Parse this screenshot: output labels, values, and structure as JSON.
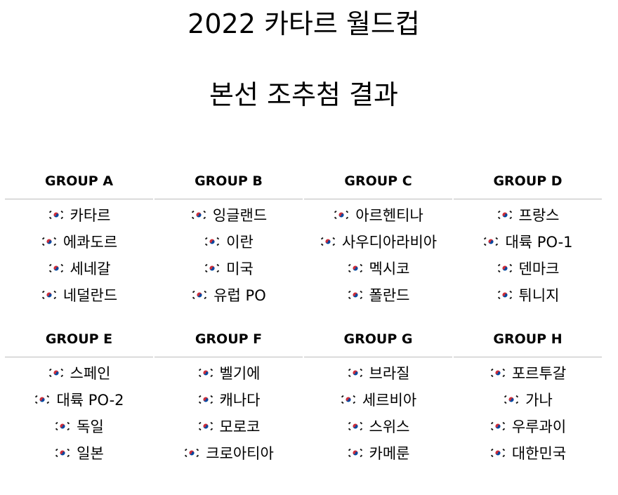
{
  "title_line1": "2022 카타르 월드컵",
  "title_line2": "본선 조추첨 결과",
  "flag_icon": "south-korea-flag-icon",
  "groups": [
    {
      "name": "GROUP A",
      "teams": [
        "카타르",
        "에콰도르",
        "세네갈",
        "네덜란드"
      ]
    },
    {
      "name": "GROUP B",
      "teams": [
        "잉글랜드",
        "이란",
        "미국",
        "유럽 PO"
      ]
    },
    {
      "name": "GROUP C",
      "teams": [
        "아르헨티나",
        "사우디아라비아",
        "멕시코",
        "폴란드"
      ]
    },
    {
      "name": "GROUP D",
      "teams": [
        "프랑스",
        "대륙 PO-1",
        "덴마크",
        "튀니지"
      ]
    },
    {
      "name": "GROUP E",
      "teams": [
        "스페인",
        "대륙 PO-2",
        "독일",
        "일본"
      ]
    },
    {
      "name": "GROUP F",
      "teams": [
        "벨기에",
        "캐나다",
        "모로코",
        "크로아티아"
      ]
    },
    {
      "name": "GROUP G",
      "teams": [
        "브라질",
        "세르비아",
        "스위스",
        "카메룬"
      ]
    },
    {
      "name": "GROUP H",
      "teams": [
        "포르투갈",
        "가나",
        "우루과이",
        "대한민국"
      ]
    }
  ]
}
